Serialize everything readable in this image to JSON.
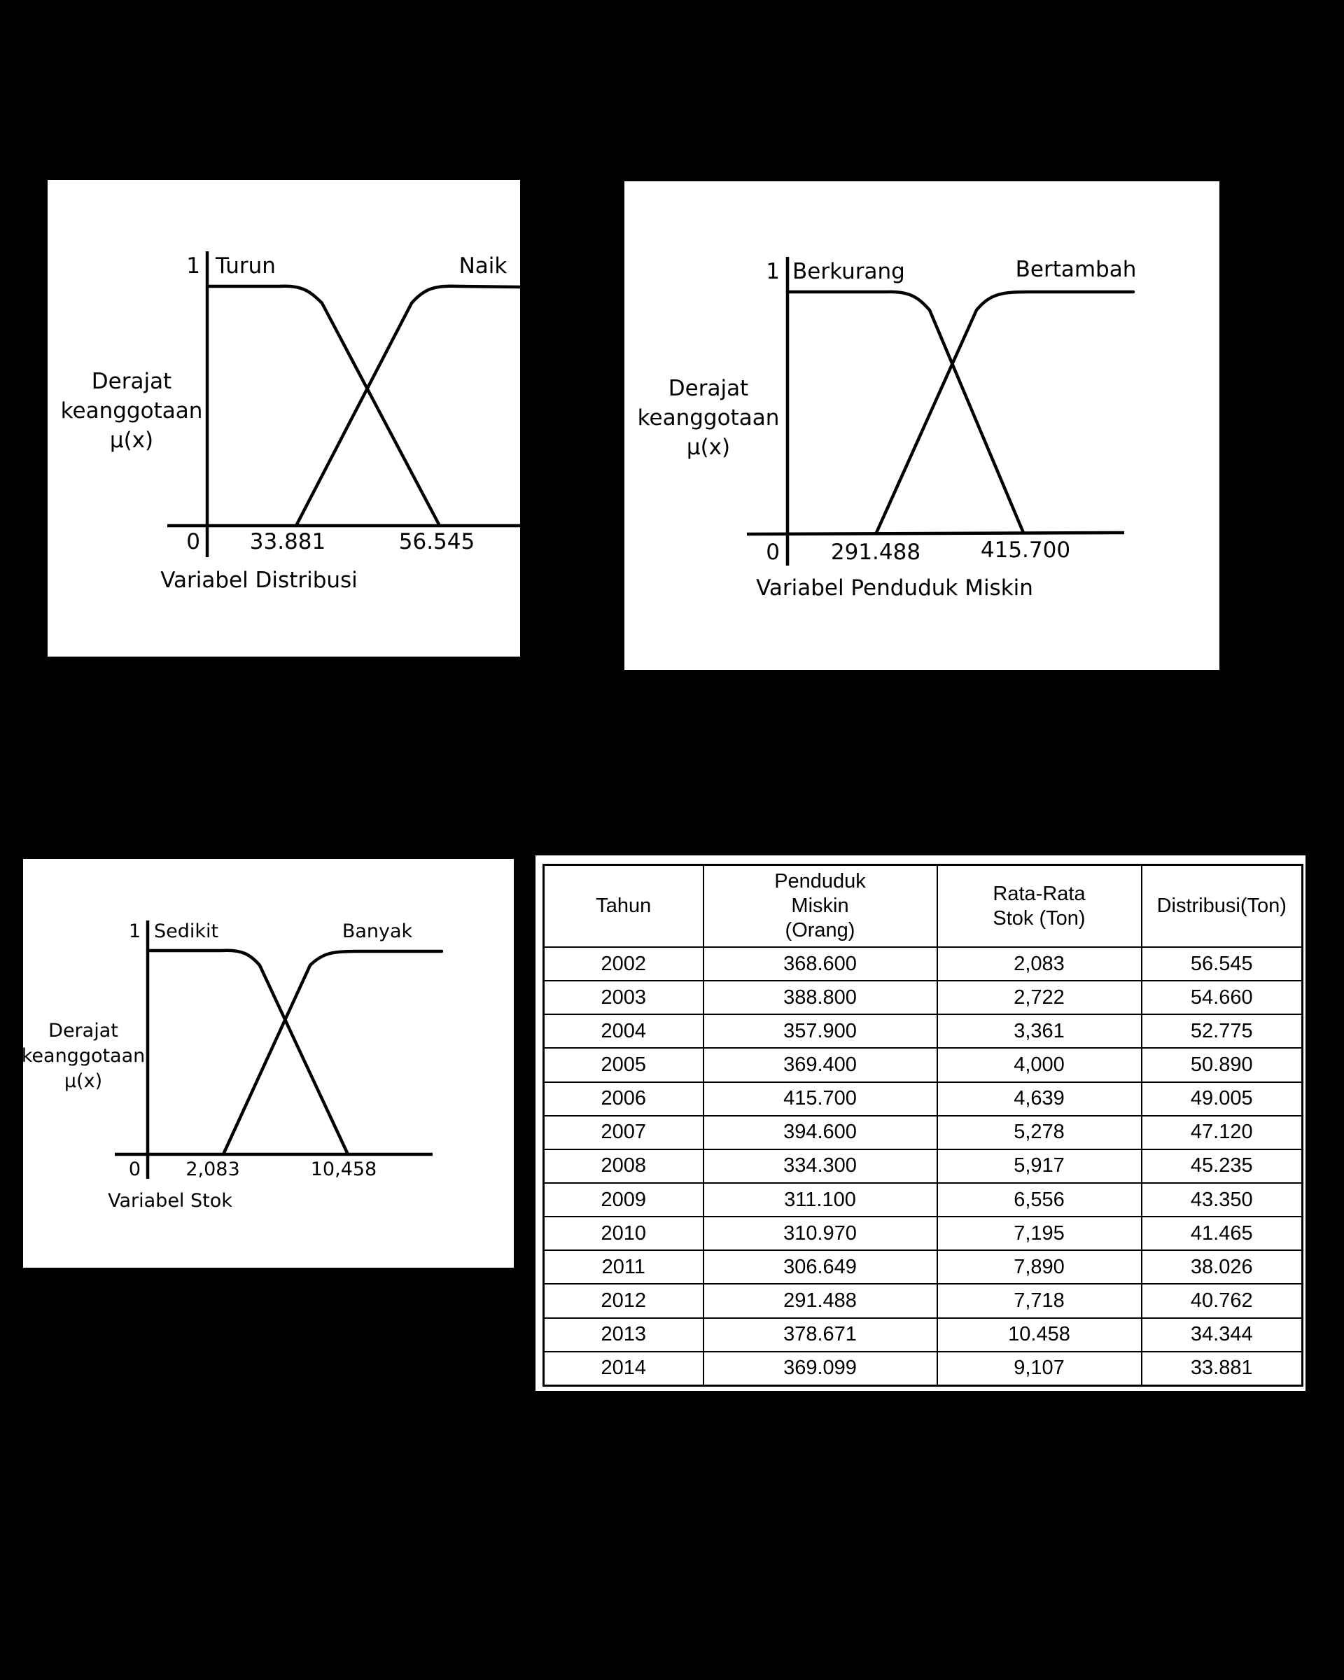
{
  "diagrams": [
    {
      "id": "distribusi",
      "axis_one": "1",
      "axis_zero": "0",
      "ylabel": [
        "Derajat",
        "keanggotaan",
        "µ(x)"
      ],
      "xlabel": "Variabel Distribusi",
      "sets": [
        {
          "name": "Turun",
          "shape": "decreasing"
        },
        {
          "name": "Naik",
          "shape": "increasing"
        }
      ],
      "breakpoints": [
        "33.881",
        "56.545"
      ]
    },
    {
      "id": "penduduk-miskin",
      "axis_one": "1",
      "axis_zero": "0",
      "ylabel": [
        "Derajat",
        "keanggotaan",
        "µ(x)"
      ],
      "xlabel": "Variabel Penduduk Miskin",
      "sets": [
        {
          "name": "Berkurang",
          "shape": "decreasing"
        },
        {
          "name": "Bertambah",
          "shape": "increasing"
        }
      ],
      "breakpoints": [
        "291.488",
        "415.700"
      ]
    },
    {
      "id": "stok",
      "axis_one": "1",
      "axis_zero": "0",
      "ylabel": [
        "Derajat",
        "keanggotaan",
        "µ(x)"
      ],
      "xlabel": "Variabel Stok",
      "sets": [
        {
          "name": "Sedikit",
          "shape": "decreasing"
        },
        {
          "name": "Banyak",
          "shape": "increasing"
        }
      ],
      "breakpoints": [
        "2,083",
        "10,458"
      ]
    }
  ],
  "table": {
    "headers": [
      [
        "Tahun"
      ],
      [
        "Penduduk",
        "Miskin",
        "(Orang)"
      ],
      [
        "Rata-Rata",
        "Stok (Ton)"
      ],
      [
        "Distribusi(Ton)"
      ]
    ],
    "rows": [
      [
        "2002",
        "368.600",
        "2,083",
        "56.545"
      ],
      [
        "2003",
        "388.800",
        "2,722",
        "54.660"
      ],
      [
        "2004",
        "357.900",
        "3,361",
        "52.775"
      ],
      [
        "2005",
        "369.400",
        "4,000",
        "50.890"
      ],
      [
        "2006",
        "415.700",
        "4,639",
        "49.005"
      ],
      [
        "2007",
        "394.600",
        "5,278",
        "47.120"
      ],
      [
        "2008",
        "334.300",
        "5,917",
        "45.235"
      ],
      [
        "2009",
        "311.100",
        "6,556",
        "43.350"
      ],
      [
        "2010",
        "310.970",
        "7,195",
        "41.465"
      ],
      [
        "2011",
        "306.649",
        "7,890",
        "38.026"
      ],
      [
        "2012",
        "291.488",
        "7,718",
        "40.762"
      ],
      [
        "2013",
        "378.671",
        "10.458",
        "34.344"
      ],
      [
        "2014",
        "369.099",
        "9,107",
        "33.881"
      ]
    ]
  },
  "colors": {
    "background": "#000000",
    "panel": "#ffffff",
    "ink": "#000000"
  }
}
